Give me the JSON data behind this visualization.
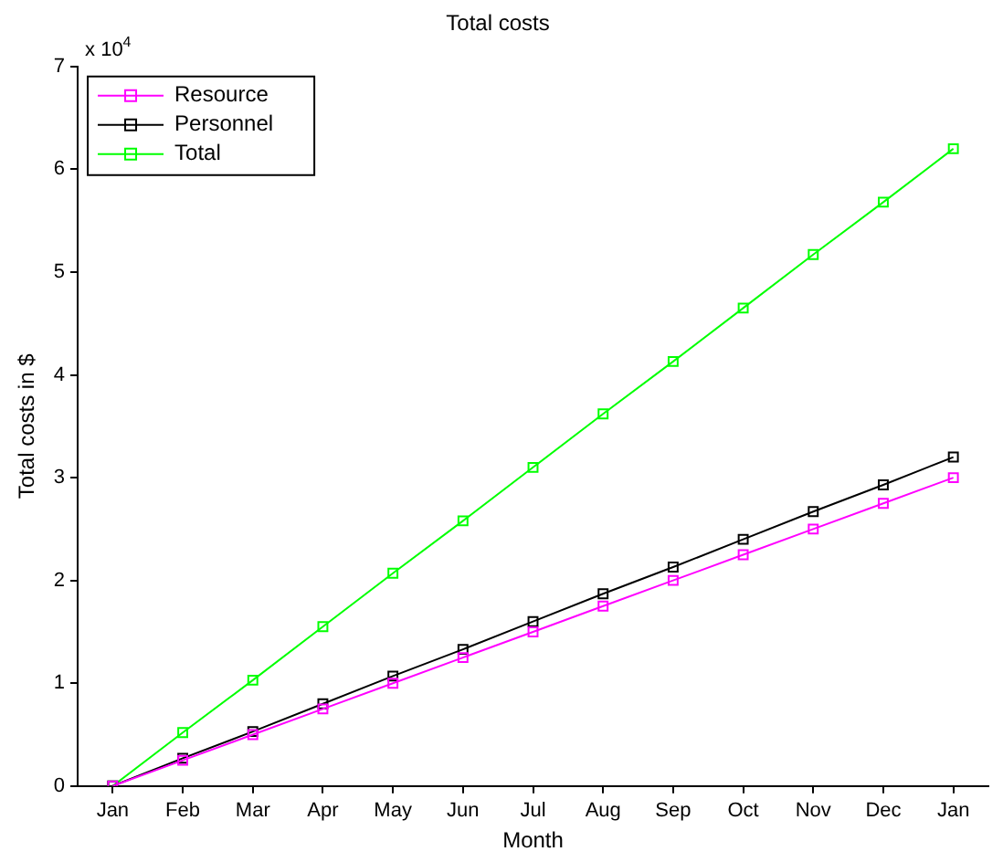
{
  "chart_data": {
    "type": "line",
    "title": "Total costs",
    "xlabel": "Month",
    "ylabel": "Total costs in $",
    "categories": [
      "Jan",
      "Feb",
      "Mar",
      "Apr",
      "May",
      "Jun",
      "Jul",
      "Aug",
      "Sep",
      "Oct",
      "Nov",
      "Dec",
      "Jan"
    ],
    "series": [
      {
        "name": "Resource",
        "color": "#ff00ff",
        "values": [
          0,
          0.25,
          0.5,
          0.75,
          1,
          1.25,
          1.5,
          1.75,
          2,
          2.25,
          2.5,
          2.75,
          3
        ]
      },
      {
        "name": "Personnel",
        "color": "#000000",
        "values": [
          0,
          0.27,
          0.53,
          0.8,
          1.07,
          1.33,
          1.6,
          1.87,
          2.13,
          2.4,
          2.67,
          2.93,
          3.2
        ]
      },
      {
        "name": "Total",
        "color": "#00ff00",
        "values": [
          0,
          0.52,
          1.03,
          1.55,
          2.07,
          2.58,
          3.1,
          3.62,
          4.13,
          4.65,
          5.17,
          5.68,
          6.2
        ]
      }
    ],
    "ylim": [
      0,
      7
    ],
    "yticks": [
      0,
      1,
      2,
      3,
      4,
      5,
      6,
      7
    ],
    "annotations": [
      "x 10$^{4}$"
    ],
    "legend": "top left",
    "marker": "square",
    "line_style": "solid",
    "grid": false
  }
}
